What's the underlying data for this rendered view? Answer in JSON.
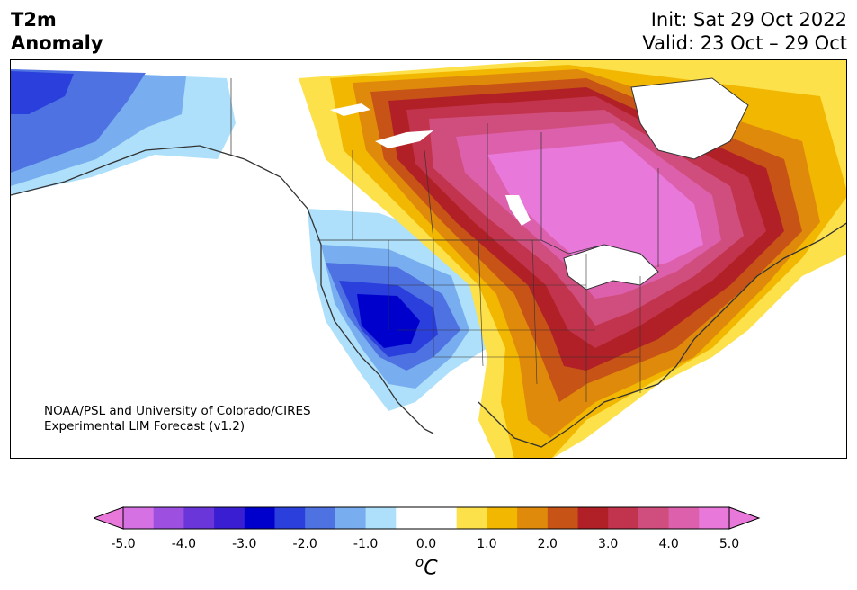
{
  "header": {
    "title_line1": "T2m",
    "title_line2": "Anomaly",
    "init_text": "Init: Sat 29 Oct 2022",
    "valid_text": "Valid: 23 Oct – 29 Oct"
  },
  "credit": {
    "line1": "NOAA/PSL and University of Colorado/CIRES",
    "line2": "Experimental LIM Forecast (v1.2)"
  },
  "colorbar": {
    "ticks": [
      "-5.0",
      "-4.0",
      "-3.0",
      "-2.0",
      "-1.0",
      "0.0",
      "1.0",
      "2.0",
      "3.0",
      "4.0",
      "5.0"
    ],
    "units_main": "C",
    "units_sup": "o",
    "colors": [
      "#d571e3",
      "#9d4fdf",
      "#6a36d9",
      "#3a1fd2",
      "#0000cd",
      "#2a3fdc",
      "#4f72e2",
      "#78aef0",
      "#aee0fb",
      "#ffffff",
      "#ffffff",
      "#fde14a",
      "#f2b701",
      "#e08a0b",
      "#c75317",
      "#b12026",
      "#c2344d",
      "#d04e7e",
      "#dd60ad",
      "#e879da"
    ]
  },
  "map": {
    "region": "North America",
    "anomaly_pattern": "cold west, warm central/east"
  }
}
